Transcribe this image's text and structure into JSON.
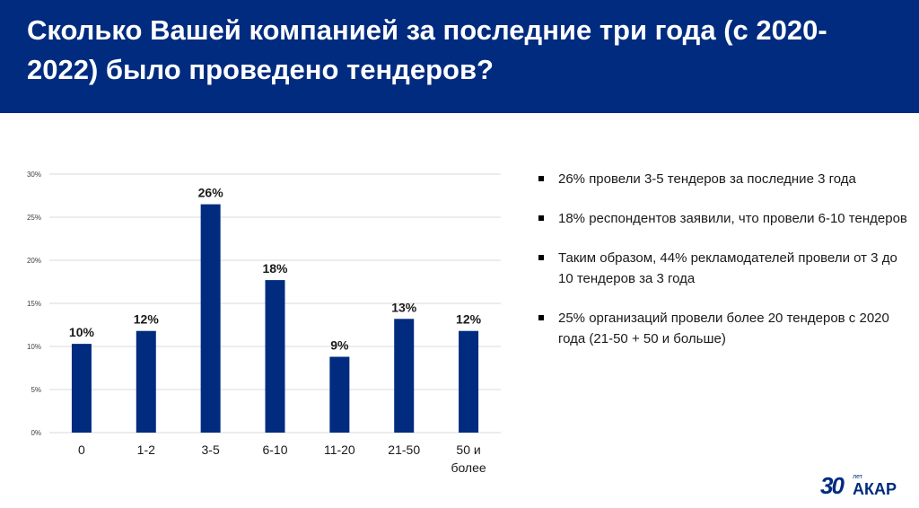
{
  "header": {
    "title": "Сколько Вашей компанией за последние три года (с 2020-2022) было проведено тендеров?"
  },
  "chart_data": {
    "type": "bar",
    "categories": [
      "0",
      "1-2",
      "3-5",
      "6-10",
      "11-20",
      "21-50",
      "50 и более"
    ],
    "values": [
      10.3,
      11.8,
      26.5,
      17.7,
      8.8,
      13.2,
      11.8
    ],
    "data_labels": [
      "10%",
      "12%",
      "26%",
      "18%",
      "9%",
      "13%",
      "12%"
    ],
    "yticks": [
      "0%",
      "5%",
      "10%",
      "15%",
      "20%",
      "25%",
      "30%"
    ],
    "ylim": [
      0,
      30
    ],
    "grid": true,
    "bar_color": "#002b7f",
    "title": "",
    "xlabel": "",
    "ylabel": ""
  },
  "bullets": [
    "26% провели 3-5 тендеров за последние 3 года",
    "18% респондентов заявили, что провели 6-10 тендеров",
    "Таким образом, 44% рекламодателей провели от 3 до 10 тендеров за 3 года",
    "25% организаций провели более 20 тендеров с 2020 года (21-50 + 50 и больше)"
  ],
  "logo": {
    "number": "30",
    "years": "лет",
    "name": "АКАР"
  },
  "colors": {
    "brand": "#002b7f",
    "text": "#1a1a1a",
    "grid": "#d9d9d9"
  }
}
